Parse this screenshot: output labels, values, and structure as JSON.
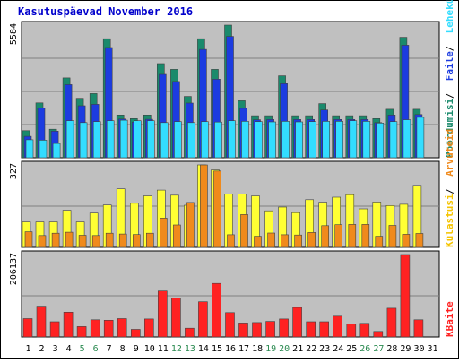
{
  "colors": {
    "background": "#ffffff",
    "panel": "#c0c0c0",
    "grid": "#808080",
    "title": "#0000cc",
    "pages": "#1a8a6c",
    "files": "#1c3ce0",
    "hits": "#33ddff",
    "visits": "#ffff33",
    "visits_dark": "#f5c400",
    "visitors": "#f08a1c",
    "kbytes": "#ff2222",
    "weekend_day": "#2a8a50",
    "weekday": "#000000"
  },
  "chart_data": {
    "type": "bar",
    "title": "Kasutuspäevad November 2016",
    "days": [
      "1",
      "2",
      "3",
      "4",
      "5",
      "6",
      "7",
      "8",
      "9",
      "10",
      "11",
      "12",
      "13",
      "14",
      "15",
      "16",
      "17",
      "18",
      "19",
      "20",
      "21",
      "22",
      "23",
      "24",
      "25",
      "26",
      "27",
      "28",
      "29",
      "30",
      "31"
    ],
    "weekend_days": [
      "5",
      "6",
      "12",
      "13",
      "19",
      "20",
      "26",
      "27"
    ],
    "panels": [
      {
        "ylabel": "5584",
        "ymax": 5584,
        "legend": [
          {
            "text": "Pöördumisi",
            "color_key": "pages"
          },
          {
            "text": "Faile",
            "color_key": "files"
          },
          {
            "text": "Lehekülgi",
            "color_key": "hits"
          }
        ],
        "series": [
          {
            "name": "Pöördumisi",
            "color_key": "pages",
            "values": [
              1140,
              2310,
              1200,
              3360,
              2500,
              2700,
              5010,
              1800,
              1650,
              1800,
              3960,
              3720,
              2580,
              5010,
              3720,
              5584,
              2400,
              1770,
              1770,
              3450,
              1770,
              1770,
              2280,
              1770,
              1770,
              1770,
              1650,
              2040,
              5070,
              2040,
              null
            ]
          },
          {
            "name": "Faile",
            "color_key": "files",
            "values": [
              900,
              2090,
              1120,
              3080,
              2190,
              2250,
              4640,
              1630,
              1500,
              1620,
              3510,
              3210,
              2300,
              4560,
              3310,
              5110,
              2080,
              1600,
              1610,
              3120,
              1610,
              1610,
              2010,
              1610,
              1610,
              1610,
              1480,
              1800,
              4740,
              1820,
              null
            ]
          },
          {
            "name": "Lehekülgi",
            "color_key": "hits",
            "values": [
              760,
              740,
              600,
              1560,
              1480,
              1520,
              1560,
              1580,
              1560,
              1560,
              1480,
              1520,
              1480,
              1520,
              1500,
              1560,
              1530,
              1520,
              1510,
              1530,
              1510,
              1520,
              1530,
              1530,
              1560,
              1530,
              1460,
              1520,
              1600,
              1700,
              null
            ]
          }
        ]
      },
      {
        "ylabel": "327",
        "ymax": 327,
        "legend": [
          {
            "text": "Külastusi",
            "color_key": "visits_dark"
          },
          {
            "text": "Arvuteid",
            "color_key": "visitors"
          }
        ],
        "series": [
          {
            "name": "Külastusi",
            "color_key": "visits",
            "values": [
              101,
              101,
              101,
              147,
              101,
              136,
              168,
              232,
              175,
              204,
              227,
              207,
              167,
              327,
              307,
              211,
              211,
              204,
              145,
              160,
              138,
              189,
              179,
              199,
              209,
              153,
              180,
              166,
              171,
              246,
              null
            ]
          },
          {
            "name": "Arvuteid",
            "color_key": "visitors",
            "values": [
              62,
              47,
              56,
              60,
              48,
              47,
              56,
              53,
              51,
              56,
              116,
              89,
              178,
              327,
              303,
              50,
              130,
              44,
              57,
              50,
              49,
              59,
              86,
              90,
              91,
              91,
              44,
              87,
              52,
              55,
              null
            ]
          }
        ]
      },
      {
        "ylabel": "206137",
        "ymax": 206137,
        "legend": [
          {
            "text": "KBaite",
            "color_key": "kbytes"
          }
        ],
        "series": [
          {
            "name": "KBaite",
            "color_key": "kbytes",
            "values": [
              46000,
              77000,
              38000,
              62000,
              26000,
              43000,
              42000,
              46000,
              19000,
              45000,
              115000,
              98000,
              22000,
              88000,
              134000,
              61000,
              35000,
              36000,
              39000,
              45000,
              74000,
              38000,
              38000,
              52000,
              33000,
              34000,
              14000,
              72000,
              206137,
              43000,
              null
            ]
          }
        ]
      }
    ]
  }
}
